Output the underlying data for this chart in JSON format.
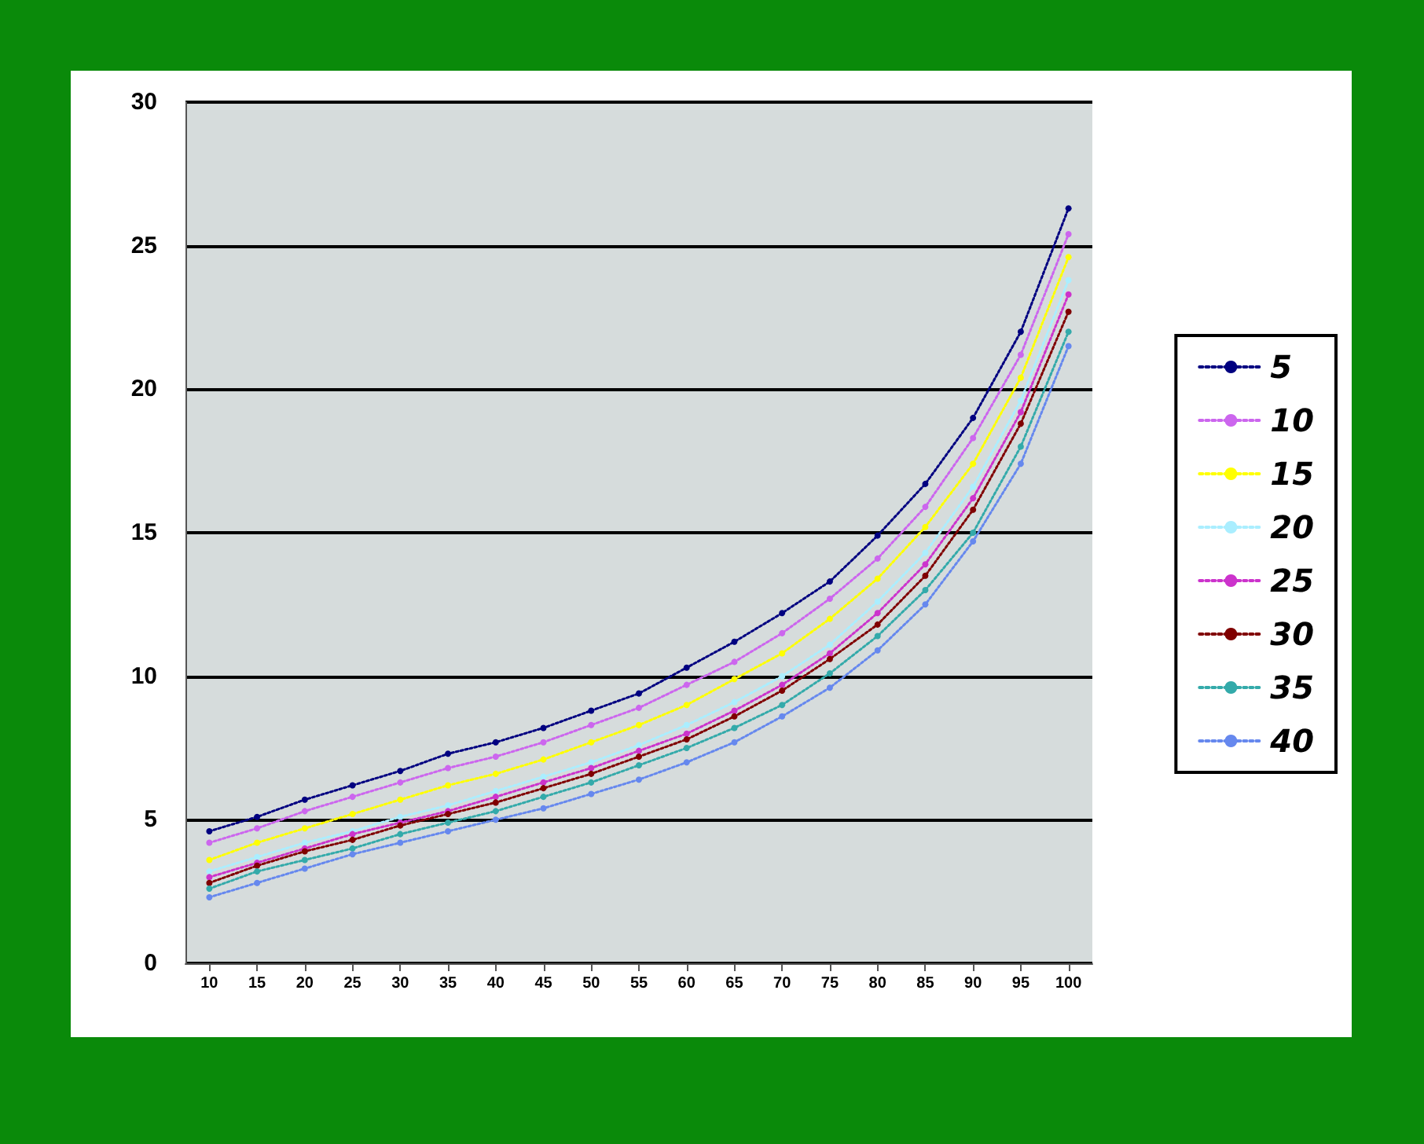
{
  "chart_data": {
    "type": "line",
    "categories": [
      "10",
      "15",
      "20",
      "25",
      "30",
      "35",
      "40",
      "45",
      "50",
      "55",
      "60",
      "65",
      "70",
      "75",
      "80",
      "85",
      "90",
      "95",
      "100"
    ],
    "series": [
      {
        "name": "5",
        "color": "#000080",
        "values": [
          4.6,
          5.1,
          5.7,
          6.2,
          6.7,
          7.3,
          7.7,
          8.2,
          8.8,
          9.4,
          10.3,
          11.2,
          12.2,
          13.3,
          14.9,
          16.7,
          19.0,
          22.0,
          26.3
        ]
      },
      {
        "name": "10",
        "color": "#cc66ee",
        "values": [
          4.2,
          4.7,
          5.3,
          5.8,
          6.3,
          6.8,
          7.2,
          7.7,
          8.3,
          8.9,
          9.7,
          10.5,
          11.5,
          12.7,
          14.1,
          15.9,
          18.3,
          21.2,
          25.4
        ]
      },
      {
        "name": "15",
        "color": "#ffff00",
        "values": [
          3.6,
          4.2,
          4.7,
          5.2,
          5.7,
          6.2,
          6.6,
          7.1,
          7.7,
          8.3,
          9.0,
          9.9,
          10.8,
          12.0,
          13.4,
          15.2,
          17.4,
          20.4,
          24.6
        ]
      },
      {
        "name": "20",
        "color": "#aaeeff",
        "values": [
          3.2,
          3.7,
          4.2,
          4.6,
          5.1,
          5.5,
          6.0,
          6.5,
          7.0,
          7.6,
          8.3,
          9.1,
          10.0,
          11.1,
          12.6,
          14.3,
          16.6,
          19.6,
          23.8
        ]
      },
      {
        "name": "25",
        "color": "#cc33cc",
        "values": [
          3.0,
          3.5,
          4.0,
          4.5,
          4.9,
          5.3,
          5.8,
          6.3,
          6.8,
          7.4,
          8.0,
          8.8,
          9.7,
          10.8,
          12.2,
          13.9,
          16.2,
          19.2,
          23.3
        ]
      },
      {
        "name": "30",
        "color": "#800000",
        "values": [
          2.8,
          3.4,
          3.9,
          4.3,
          4.8,
          5.2,
          5.6,
          6.1,
          6.6,
          7.2,
          7.8,
          8.6,
          9.5,
          10.6,
          11.8,
          13.5,
          15.8,
          18.8,
          22.7
        ]
      },
      {
        "name": "35",
        "color": "#33aaaa",
        "values": [
          2.6,
          3.2,
          3.6,
          4.0,
          4.5,
          4.9,
          5.3,
          5.8,
          6.3,
          6.9,
          7.5,
          8.2,
          9.0,
          10.1,
          11.4,
          13.0,
          15.0,
          18.0,
          22.0
        ]
      },
      {
        "name": "40",
        "color": "#6688ee",
        "values": [
          2.3,
          2.8,
          3.3,
          3.8,
          4.2,
          4.6,
          5.0,
          5.4,
          5.9,
          6.4,
          7.0,
          7.7,
          8.6,
          9.6,
          10.9,
          12.5,
          14.7,
          17.4,
          21.5
        ]
      }
    ],
    "ylim": [
      0,
      30
    ],
    "yticks": [
      0,
      5,
      10,
      15,
      20,
      25,
      30
    ],
    "grid": "y",
    "legend": "right",
    "marker": "circle",
    "line_style": "dotted"
  }
}
